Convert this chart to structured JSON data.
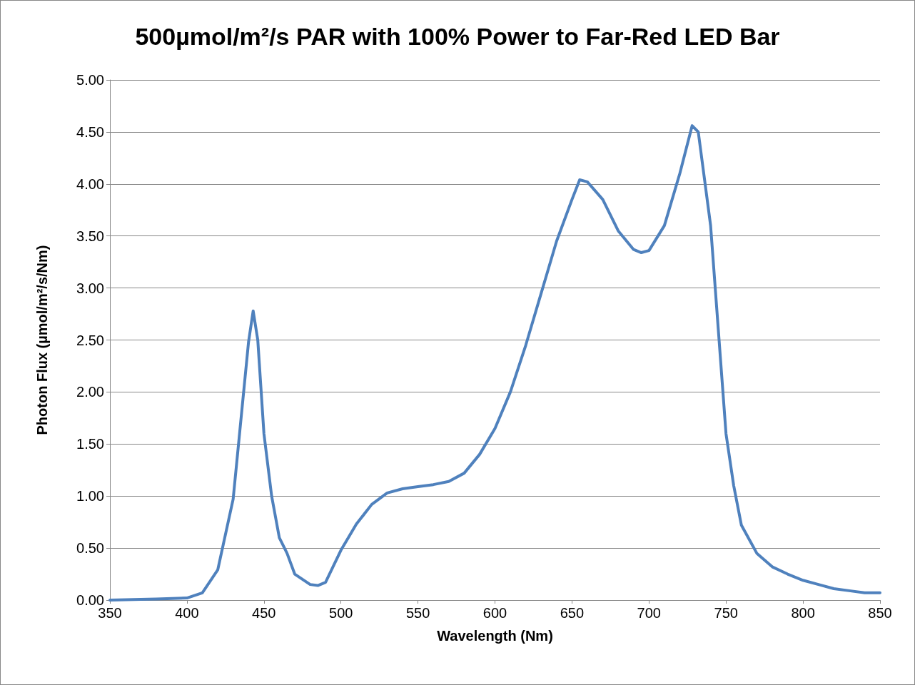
{
  "chart_data": {
    "type": "line",
    "title": "500µmol/m²/s PAR with 100% Power to Far-Red LED Bar",
    "xlabel": "Wavelength (Nm)",
    "ylabel": "Photon Flux (µmol/m²/s/Nm)",
    "x": [
      350,
      380,
      400,
      410,
      420,
      430,
      440,
      443,
      446,
      450,
      455,
      460,
      465,
      470,
      480,
      485,
      490,
      500,
      510,
      520,
      530,
      540,
      550,
      560,
      570,
      580,
      590,
      600,
      610,
      620,
      630,
      640,
      650,
      655,
      660,
      670,
      680,
      690,
      695,
      700,
      710,
      720,
      728,
      732,
      740,
      745,
      750,
      755,
      760,
      770,
      780,
      790,
      800,
      810,
      820,
      830,
      840,
      850
    ],
    "series": [
      {
        "color": "#4f81bd",
        "values": [
          0.0,
          0.01,
          0.02,
          0.07,
          0.29,
          0.97,
          2.48,
          2.78,
          2.5,
          1.6,
          1.0,
          0.6,
          0.45,
          0.25,
          0.15,
          0.14,
          0.17,
          0.48,
          0.73,
          0.92,
          1.03,
          1.07,
          1.09,
          1.11,
          1.14,
          1.22,
          1.4,
          1.65,
          2.0,
          2.45,
          2.95,
          3.45,
          3.85,
          4.04,
          4.02,
          3.85,
          3.55,
          3.37,
          3.34,
          3.36,
          3.6,
          4.1,
          4.56,
          4.5,
          3.6,
          2.6,
          1.6,
          1.1,
          0.72,
          0.45,
          0.32,
          0.25,
          0.19,
          0.15,
          0.11,
          0.09,
          0.07,
          0.07
        ]
      }
    ],
    "xlim": [
      350,
      850
    ],
    "xticks": [
      350,
      400,
      450,
      500,
      550,
      600,
      650,
      700,
      750,
      800,
      850
    ],
    "ylim": [
      0,
      5
    ],
    "yticks": [
      {
        "value": 0,
        "label": "0.00"
      },
      {
        "value": 0.5,
        "label": "0.50"
      },
      {
        "value": 1,
        "label": "1.00"
      },
      {
        "value": 1.5,
        "label": "1.50"
      },
      {
        "value": 2,
        "label": "2.00"
      },
      {
        "value": 2.5,
        "label": "2.50"
      },
      {
        "value": 3,
        "label": "3.00"
      },
      {
        "value": 3.5,
        "label": "3.50"
      },
      {
        "value": 4,
        "label": "4.00"
      },
      {
        "value": 4.5,
        "label": "4.50"
      },
      {
        "value": 5,
        "label": "5.00"
      }
    ],
    "grid": "y",
    "marker": "none",
    "line_style": "solid"
  }
}
